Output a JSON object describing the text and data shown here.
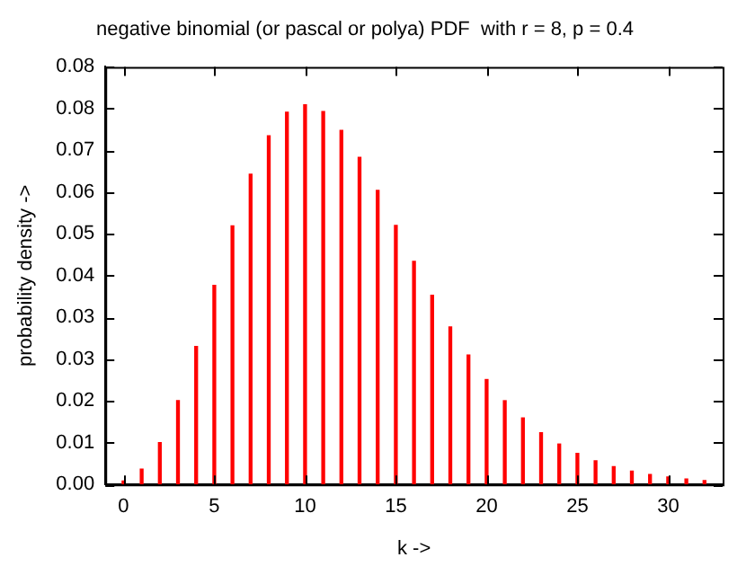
{
  "chart_data": {
    "type": "bar",
    "title": "negative binomial (or pascal or polya) PDF  with r = 8, p = 0.4",
    "xlabel": "k ->",
    "ylabel": "probability density ->",
    "color": "#ff0000",
    "x": [
      0,
      1,
      2,
      3,
      4,
      5,
      6,
      7,
      8,
      9,
      10,
      11,
      12,
      13,
      14,
      15,
      16,
      17,
      18,
      19,
      20,
      21,
      22,
      23,
      24,
      25,
      26,
      27,
      28,
      29,
      30,
      31,
      32
    ],
    "values": [
      0.0007,
      0.0031,
      0.0085,
      0.017,
      0.028,
      0.0404,
      0.0525,
      0.063,
      0.0708,
      0.0756,
      0.0771,
      0.0757,
      0.0719,
      0.0664,
      0.0597,
      0.0526,
      0.0453,
      0.0384,
      0.032,
      0.0263,
      0.0213,
      0.017,
      0.0135,
      0.0105,
      0.0082,
      0.0063,
      0.0048,
      0.0036,
      0.0027,
      0.002,
      0.0015,
      0.0011,
      0.0008
    ],
    "xlim": [
      -1,
      33
    ],
    "xticks": [
      0,
      5,
      10,
      15,
      20,
      25,
      30
    ],
    "ylim": [
      0,
      0.0848
    ],
    "yticks": [
      {
        "value": 0,
        "label": "0.00"
      },
      {
        "value": 0.00848,
        "label": "0.01"
      },
      {
        "value": 0.01696,
        "label": "0.02"
      },
      {
        "value": 0.02544,
        "label": "0.03"
      },
      {
        "value": 0.03392,
        "label": "0.03"
      },
      {
        "value": 0.0424,
        "label": "0.04"
      },
      {
        "value": 0.05088,
        "label": "0.05"
      },
      {
        "value": 0.05936,
        "label": "0.06"
      },
      {
        "value": 0.06784,
        "label": "0.07"
      },
      {
        "value": 0.07632,
        "label": "0.08"
      },
      {
        "value": 0.0848,
        "label": "0.08"
      }
    ],
    "grid": false,
    "legend": false
  }
}
